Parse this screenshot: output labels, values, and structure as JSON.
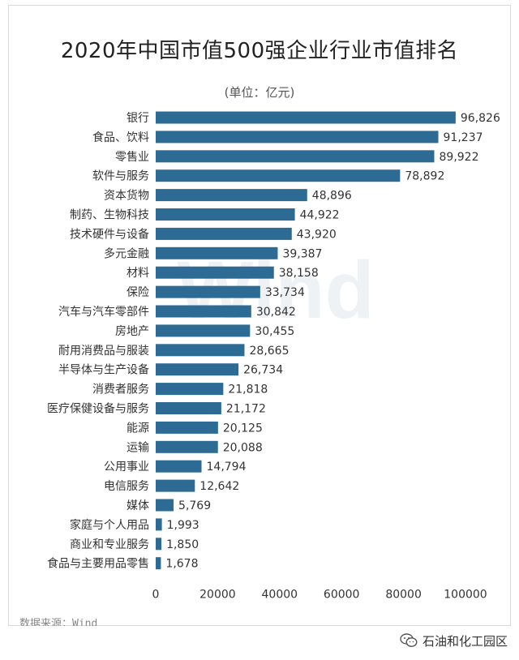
{
  "title": "2020年中国市值500强企业行业市值排名",
  "unit_note": "(单位：亿元)",
  "source": "数据来源：Wind",
  "watermark": "Wind",
  "brand": {
    "name": "石油和化工园区",
    "icon": "wechat-icon"
  },
  "colors": {
    "bar": "#2e6b94",
    "text": "#333333",
    "watermark": "#eef2f5"
  },
  "chart_data": {
    "type": "bar",
    "orientation": "horizontal",
    "title": "2020年中国市值500强企业行业市值排名",
    "xlabel": "",
    "ylabel": "",
    "unit": "(单位：亿元)",
    "xlim": [
      0,
      100000
    ],
    "xticks": [
      "0",
      "20000",
      "40000",
      "60000",
      "80000",
      "100000"
    ],
    "grid": false,
    "categories": [
      "银行",
      "食品、饮料",
      "零售业",
      "软件与服务",
      "资本货物",
      "制药、生物科技",
      "技术硬件与设备",
      "多元金融",
      "材料",
      "保险",
      "汽车与汽车零部件",
      "房地产",
      "耐用消费品与服装",
      "半导体与生产设备",
      "消费者服务",
      "医疗保健设备与服务",
      "能源",
      "运输",
      "公用事业",
      "电信服务",
      "媒体",
      "家庭与个人用品",
      "商业和专业服务",
      "食品与主要用品零售"
    ],
    "values": [
      96826,
      91237,
      89922,
      78892,
      48896,
      44922,
      43920,
      39387,
      38158,
      33734,
      30842,
      30455,
      28665,
      26734,
      21818,
      21172,
      20125,
      20088,
      14794,
      12642,
      5769,
      1993,
      1850,
      1678
    ],
    "value_labels": [
      "96,826",
      "91,237",
      "89,922",
      "78,892",
      "48,896",
      "44,922",
      "43,920",
      "39,387",
      "38,158",
      "33,734",
      "30,842",
      "30,455",
      "28,665",
      "26,734",
      "21,818",
      "21,172",
      "20,125",
      "20,088",
      "14,794",
      "12,642",
      "5,769",
      "1,993",
      "1,850",
      "1,678"
    ]
  }
}
